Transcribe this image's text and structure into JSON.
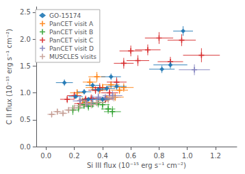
{
  "chart_data": {
    "type": "scatter",
    "xlabel": "Si III flux (10⁻¹⁵ erg s⁻¹ cm⁻²)",
    "ylabel": "C II flux (10⁻¹⁵ erg s⁻¹ cm⁻²)",
    "xlim": [
      -0.07,
      1.35
    ],
    "ylim": [
      0.0,
      2.6
    ],
    "xticks": [
      {
        "value": 0.0,
        "label": "0.0"
      },
      0.2,
      0.4,
      0.6,
      0.8,
      {
        "value": 1.0,
        "label": "1.0"
      },
      1.2
    ],
    "yticks": [
      {
        "value": 0.0,
        "label": "0.0"
      },
      0.5,
      {
        "value": 1.0,
        "label": "1.0"
      },
      1.5,
      {
        "value": 2.0,
        "label": "2.0"
      },
      2.5
    ],
    "grid": false,
    "legend": "upper left",
    "series": [
      {
        "name": "GO-15174",
        "color": "#1f77b4",
        "marker": "diamond",
        "x": [
          0.13,
          0.21,
          0.27,
          0.3,
          0.33,
          0.37,
          0.4,
          0.43,
          0.46,
          0.5,
          0.82,
          0.88,
          0.97
        ],
        "y": [
          1.19,
          0.93,
          1.02,
          0.88,
          1.14,
          1.06,
          0.88,
          1.08,
          1.3,
          1.12,
          1.44,
          1.52,
          2.15
        ],
        "xerr": [
          0.06,
          0.05,
          0.05,
          0.05,
          0.05,
          0.05,
          0.05,
          0.06,
          0.07,
          0.07,
          0.09,
          0.12,
          0.07
        ],
        "yerr": [
          0.06,
          0.04,
          0.05,
          0.04,
          0.05,
          0.05,
          0.04,
          0.05,
          0.06,
          0.06,
          0.07,
          0.07,
          0.09
        ]
      },
      {
        "name": "PanCET visit A",
        "color": "#ff7f0e",
        "marker": "plus",
        "x": [
          0.22,
          0.26,
          0.29,
          0.31,
          0.33,
          0.36,
          0.38,
          0.4,
          0.43,
          0.46,
          0.49,
          0.52,
          0.55
        ],
        "y": [
          1.0,
          0.85,
          0.82,
          1.2,
          1.1,
          1.3,
          1.05,
          1.1,
          0.9,
          1.15,
          0.92,
          1.05,
          1.1
        ],
        "xerr": [
          0.05,
          0.04,
          0.04,
          0.05,
          0.05,
          0.06,
          0.05,
          0.05,
          0.05,
          0.06,
          0.06,
          0.06,
          0.07
        ],
        "yerr": [
          0.07,
          0.06,
          0.06,
          0.08,
          0.07,
          0.09,
          0.07,
          0.07,
          0.06,
          0.07,
          0.07,
          0.07,
          0.08
        ]
      },
      {
        "name": "PanCET visit B",
        "color": "#2ca02c",
        "marker": "plus",
        "x": [
          0.19,
          0.23,
          0.27,
          0.3,
          0.33,
          0.37,
          0.4,
          0.44,
          0.47
        ],
        "y": [
          0.68,
          0.72,
          0.78,
          0.75,
          0.8,
          0.82,
          0.78,
          0.7,
          0.65
        ],
        "xerr": [
          0.04,
          0.04,
          0.04,
          0.04,
          0.05,
          0.05,
          0.05,
          0.05,
          0.06
        ],
        "yerr": [
          0.09,
          0.08,
          0.08,
          0.08,
          0.08,
          0.09,
          0.09,
          0.09,
          0.1
        ]
      },
      {
        "name": "PanCET visit C",
        "color": "#d62728",
        "marker": "plus",
        "x": [
          0.15,
          0.2,
          0.24,
          0.28,
          0.32,
          0.35,
          0.38,
          0.42,
          0.45,
          0.5,
          0.55,
          0.6,
          0.65,
          0.72,
          0.8,
          0.88,
          0.96,
          1.1
        ],
        "y": [
          0.88,
          0.95,
          0.8,
          0.88,
          0.9,
          1.05,
          1.1,
          0.88,
          1.0,
          1.2,
          1.55,
          1.78,
          1.6,
          1.8,
          2.02,
          1.58,
          1.98,
          1.7
        ],
        "xerr": [
          0.05,
          0.05,
          0.04,
          0.05,
          0.05,
          0.05,
          0.05,
          0.05,
          0.06,
          0.07,
          0.07,
          0.08,
          0.08,
          0.09,
          0.1,
          0.09,
          0.1,
          0.13
        ],
        "yerr": [
          0.07,
          0.07,
          0.06,
          0.07,
          0.07,
          0.07,
          0.08,
          0.07,
          0.08,
          0.09,
          0.1,
          0.1,
          0.1,
          0.1,
          0.11,
          0.09,
          0.11,
          0.13
        ]
      },
      {
        "name": "PanCET visit D",
        "color": "#7f7fbd",
        "marker": "plus",
        "x": [
          0.24,
          0.29,
          0.33,
          0.37,
          0.42,
          0.47,
          1.05
        ],
        "y": [
          0.85,
          0.8,
          0.88,
          0.92,
          0.9,
          0.95,
          1.43
        ],
        "xerr": [
          0.05,
          0.05,
          0.05,
          0.05,
          0.06,
          0.07,
          0.11
        ],
        "yerr": [
          0.08,
          0.08,
          0.08,
          0.08,
          0.08,
          0.09,
          0.1
        ]
      },
      {
        "name": "MUSCLES visits",
        "color": "#c49c94",
        "marker": "plus",
        "x": [
          0.04,
          0.08,
          0.12,
          0.16,
          0.2,
          0.24,
          0.28,
          0.32,
          0.36,
          0.4,
          0.44,
          0.48
        ],
        "y": [
          0.6,
          0.65,
          0.62,
          0.68,
          0.72,
          0.76,
          0.8,
          0.78,
          0.82,
          0.86,
          0.88,
          0.92
        ],
        "xerr": [
          0.03,
          0.03,
          0.03,
          0.03,
          0.04,
          0.04,
          0.04,
          0.04,
          0.05,
          0.05,
          0.05,
          0.05
        ],
        "yerr": [
          0.06,
          0.06,
          0.06,
          0.06,
          0.06,
          0.07,
          0.07,
          0.07,
          0.07,
          0.07,
          0.08,
          0.08
        ]
      }
    ]
  }
}
